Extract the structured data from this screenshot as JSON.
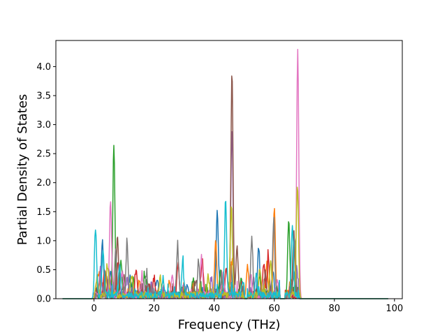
{
  "chart_data": {
    "type": "line",
    "xlabel": "Frequency (THz)",
    "ylabel": "Partial Density of States",
    "xlim": [
      -12.7,
      102.6
    ],
    "ylim": [
      0,
      4.45
    ],
    "xticks": [
      0,
      20,
      40,
      60,
      80,
      100
    ],
    "yticks": [
      0.0,
      0.5,
      1.0,
      1.5,
      2.0,
      2.5,
      3.0,
      3.5,
      4.0
    ],
    "grid": false,
    "legend": "none",
    "colors": [
      "#1f77b4",
      "#ff7f0e",
      "#2ca02c",
      "#d62728",
      "#9467bd",
      "#8c564b",
      "#e377c2",
      "#7f7f7f",
      "#bcbd22",
      "#17becf"
    ],
    "x_range_of_data": [
      -10.5,
      98
    ],
    "series": [
      {
        "peaks": [
          [
            2.8,
            0.95
          ],
          [
            5.5,
            0.45
          ],
          [
            12,
            0.3
          ],
          [
            21,
            0.25
          ],
          [
            31,
            0.2
          ],
          [
            41,
            1.46
          ],
          [
            45.5,
            0.55
          ],
          [
            54.8,
            0.82
          ],
          [
            59.5,
            0.45
          ],
          [
            66.5,
            0.4
          ]
        ]
      },
      {
        "peaks": [
          [
            1.5,
            0.4
          ],
          [
            6,
            0.3
          ],
          [
            15,
            0.25
          ],
          [
            25,
            0.2
          ],
          [
            40.5,
            0.9
          ],
          [
            46,
            0.6
          ],
          [
            51,
            0.5
          ],
          [
            57.5,
            0.55
          ],
          [
            60,
            1.5
          ],
          [
            65.5,
            0.3
          ]
        ]
      },
      {
        "peaks": [
          [
            6.6,
            2.55
          ],
          [
            9,
            0.6
          ],
          [
            13,
            0.3
          ],
          [
            17,
            0.35
          ],
          [
            33,
            0.3
          ],
          [
            42,
            0.4
          ],
          [
            49,
            0.3
          ],
          [
            55,
            0.35
          ],
          [
            64.8,
            1.27
          ]
        ]
      },
      {
        "peaks": [
          [
            3.5,
            0.45
          ],
          [
            8,
            0.55
          ],
          [
            14,
            0.45
          ],
          [
            20,
            0.3
          ],
          [
            28,
            0.55
          ],
          [
            36,
            0.62
          ],
          [
            44,
            0.5
          ],
          [
            56.5,
            0.55
          ],
          [
            58,
            0.6
          ]
        ]
      },
      {
        "peaks": [
          [
            2.2,
            0.5
          ],
          [
            5,
            0.4
          ],
          [
            11,
            0.3
          ],
          [
            19,
            0.2
          ],
          [
            30,
            0.2
          ],
          [
            39,
            0.3
          ],
          [
            45.9,
            2.88
          ],
          [
            53,
            0.3
          ],
          [
            67.5,
            0.5
          ]
        ]
      },
      {
        "peaks": [
          [
            4,
            0.35
          ],
          [
            7.8,
            1.02
          ],
          [
            10,
            0.3
          ],
          [
            18,
            0.2
          ],
          [
            34,
            0.25
          ],
          [
            45.9,
            3.86
          ],
          [
            47.6,
            0.85
          ],
          [
            57,
            0.4
          ],
          [
            66.5,
            1.1
          ]
        ]
      },
      {
        "peaks": [
          [
            5.5,
            1.62
          ],
          [
            9.5,
            0.4
          ],
          [
            16,
            0.3
          ],
          [
            26,
            0.3
          ],
          [
            35.8,
            0.65
          ],
          [
            43,
            0.4
          ],
          [
            52,
            0.35
          ],
          [
            61,
            0.3
          ],
          [
            67.8,
            4.23
          ]
        ]
      },
      {
        "peaks": [
          [
            7.2,
            0.8
          ],
          [
            11,
            0.88
          ],
          [
            17.5,
            0.35
          ],
          [
            27.8,
            0.8
          ],
          [
            34.8,
            0.62
          ],
          [
            42.5,
            0.3
          ],
          [
            52.5,
            1.0
          ],
          [
            59.8,
            1.28
          ],
          [
            66.8,
            1.0
          ]
        ]
      },
      {
        "peaks": [
          [
            1,
            0.3
          ],
          [
            4.5,
            0.5
          ],
          [
            12.5,
            0.35
          ],
          [
            22,
            0.3
          ],
          [
            38,
            0.35
          ],
          [
            45.7,
            1.53
          ],
          [
            55.2,
            0.5
          ],
          [
            58.8,
            0.55
          ],
          [
            67.7,
            1.93
          ]
        ]
      },
      {
        "peaks": [
          [
            0.5,
            1.16
          ],
          [
            3,
            0.82
          ],
          [
            8.5,
            0.5
          ],
          [
            23,
            0.3
          ],
          [
            29.5,
            0.5
          ],
          [
            43.8,
            1.64
          ],
          [
            49.5,
            0.25
          ],
          [
            54,
            0.35
          ],
          [
            66,
            1.17
          ]
        ]
      }
    ]
  }
}
